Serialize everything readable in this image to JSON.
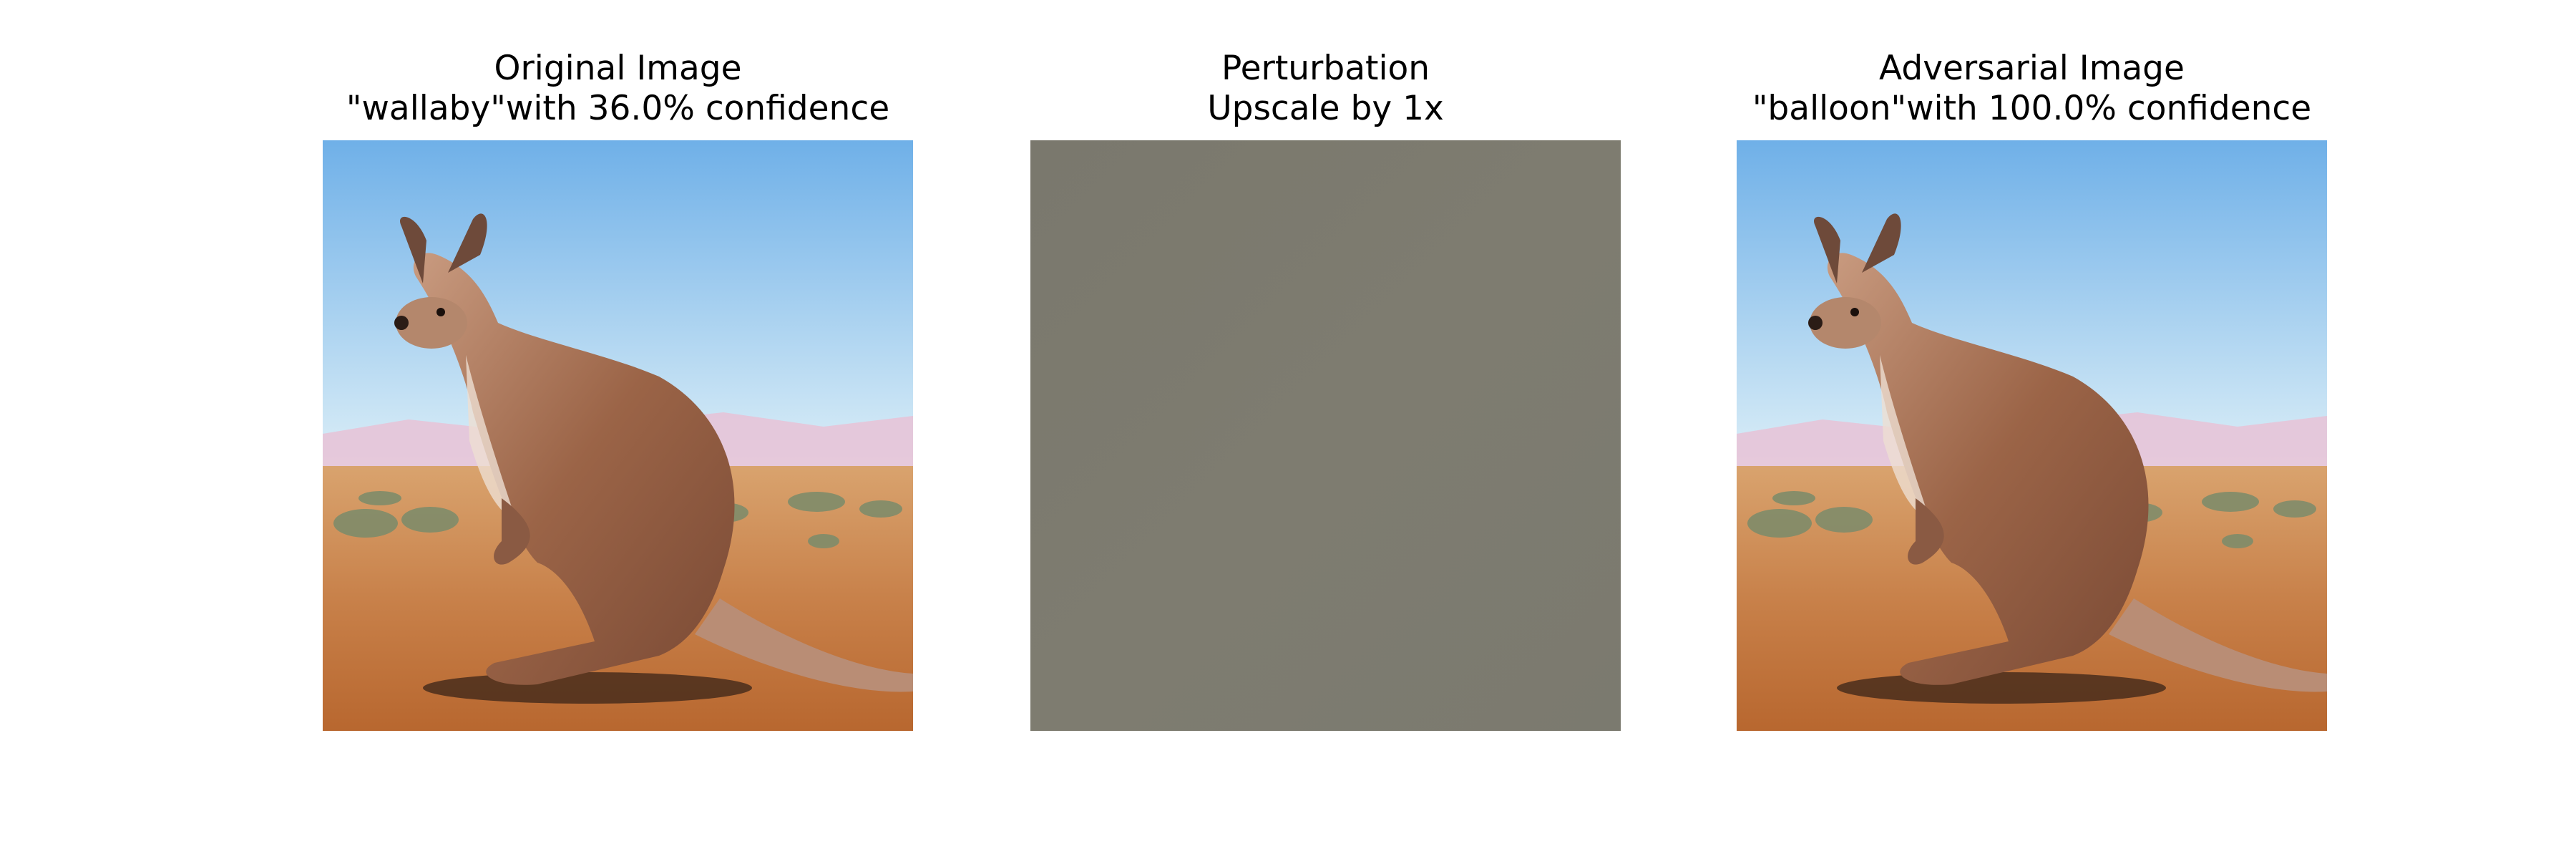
{
  "figure": {
    "panels": [
      {
        "title_line1": "Original Image",
        "title_line2": "\"wallaby\"with 36.0% confidence"
      },
      {
        "title_line1": "Perturbation",
        "title_line2": "Upscale by 1x"
      },
      {
        "title_line1": "Adversarial Image",
        "title_line2": "\"balloon\"with 100.0% confidence"
      }
    ]
  },
  "colors": {
    "sky_top": "#7fb7e6",
    "sky_bottom": "#e9f3f8",
    "ground": "#c47d45",
    "kangaroo": "#9c6a4f",
    "perturbation_gray": "#7c7a6e"
  }
}
